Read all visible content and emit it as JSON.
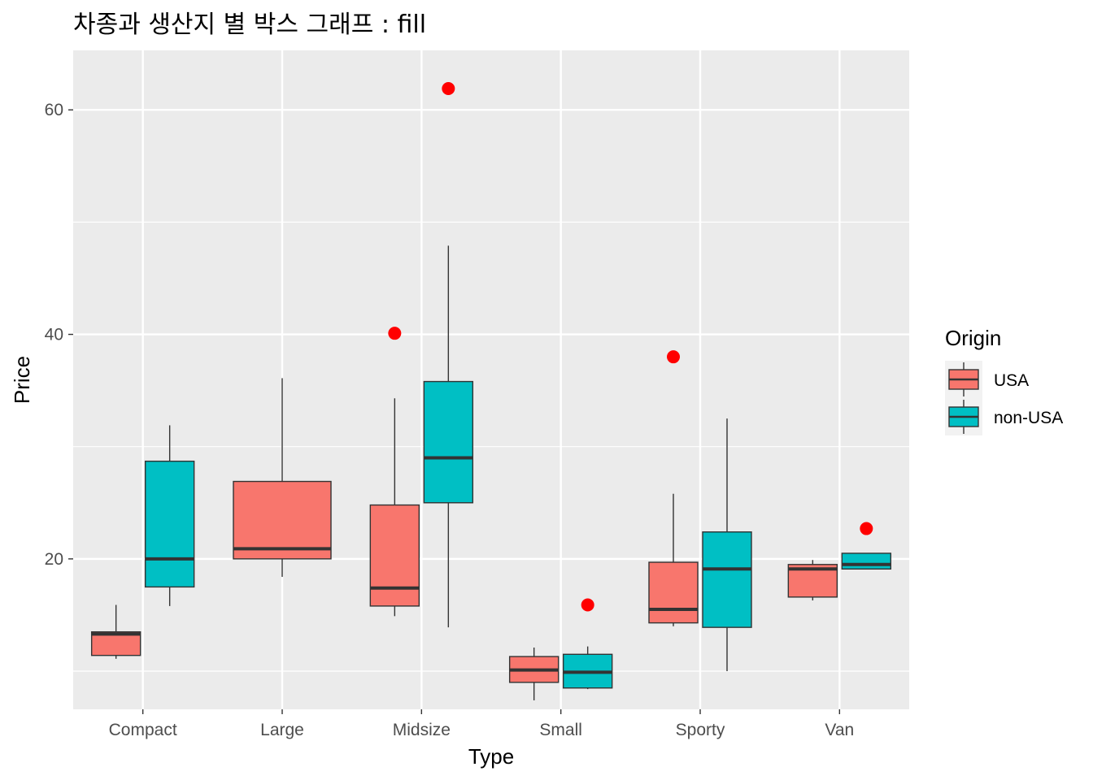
{
  "chart_data": {
    "type": "box",
    "title": "차종과 생산지 별 박스 그래프 : fill",
    "xlabel": "Type",
    "ylabel": "Price",
    "categories": [
      "Compact",
      "Large",
      "Midsize",
      "Small",
      "Sporty",
      "Van"
    ],
    "yticks": [
      20,
      40,
      60
    ],
    "ylim": [
      6.6,
      65.3
    ],
    "grid": true,
    "legend": {
      "title": "Origin",
      "placement": "right"
    },
    "series": [
      {
        "name": "USA",
        "color": "#F8766D",
        "boxes": [
          {
            "category": "Compact",
            "min": 11.1,
            "q1": 11.4,
            "median": 13.3,
            "q3": 13.5,
            "max": 15.9,
            "outliers": []
          },
          {
            "category": "Large",
            "min": 18.4,
            "q1": 20.0,
            "median": 20.9,
            "q3": 26.9,
            "max": 36.1,
            "outliers": []
          },
          {
            "category": "Midsize",
            "min": 14.9,
            "q1": 15.8,
            "median": 17.4,
            "q3": 24.8,
            "max": 34.3,
            "outliers": [
              40.1
            ]
          },
          {
            "category": "Small",
            "min": 7.4,
            "q1": 9.0,
            "median": 10.1,
            "q3": 11.3,
            "max": 12.1,
            "outliers": []
          },
          {
            "category": "Sporty",
            "min": 14.0,
            "q1": 14.3,
            "median": 15.5,
            "q3": 19.7,
            "max": 25.8,
            "outliers": [
              38.0
            ]
          },
          {
            "category": "Van",
            "min": 16.3,
            "q1": 16.6,
            "median": 19.1,
            "q3": 19.5,
            "max": 19.9,
            "outliers": []
          }
        ]
      },
      {
        "name": "non-USA",
        "color": "#00BFC4",
        "boxes": [
          {
            "category": "Compact",
            "min": 15.8,
            "q1": 17.5,
            "median": 20.0,
            "q3": 28.7,
            "max": 31.9,
            "outliers": []
          },
          {
            "category": "Large",
            "min": null,
            "q1": null,
            "median": null,
            "q3": null,
            "max": null,
            "outliers": []
          },
          {
            "category": "Midsize",
            "min": 13.9,
            "q1": 25.0,
            "median": 29.0,
            "q3": 35.8,
            "max": 47.9,
            "outliers": [
              61.9
            ]
          },
          {
            "category": "Small",
            "min": 8.4,
            "q1": 8.5,
            "median": 9.9,
            "q3": 11.5,
            "max": 12.2,
            "outliers": [
              15.9
            ]
          },
          {
            "category": "Sporty",
            "min": 10.0,
            "q1": 13.9,
            "median": 19.1,
            "q3": 22.4,
            "max": 32.5,
            "outliers": []
          },
          {
            "category": "Van",
            "min": 19.1,
            "q1": 19.1,
            "median": 19.5,
            "q3": 20.5,
            "max": 20.5,
            "outliers": [
              22.7
            ]
          }
        ]
      }
    ],
    "outlier_color": "#FF0000"
  }
}
